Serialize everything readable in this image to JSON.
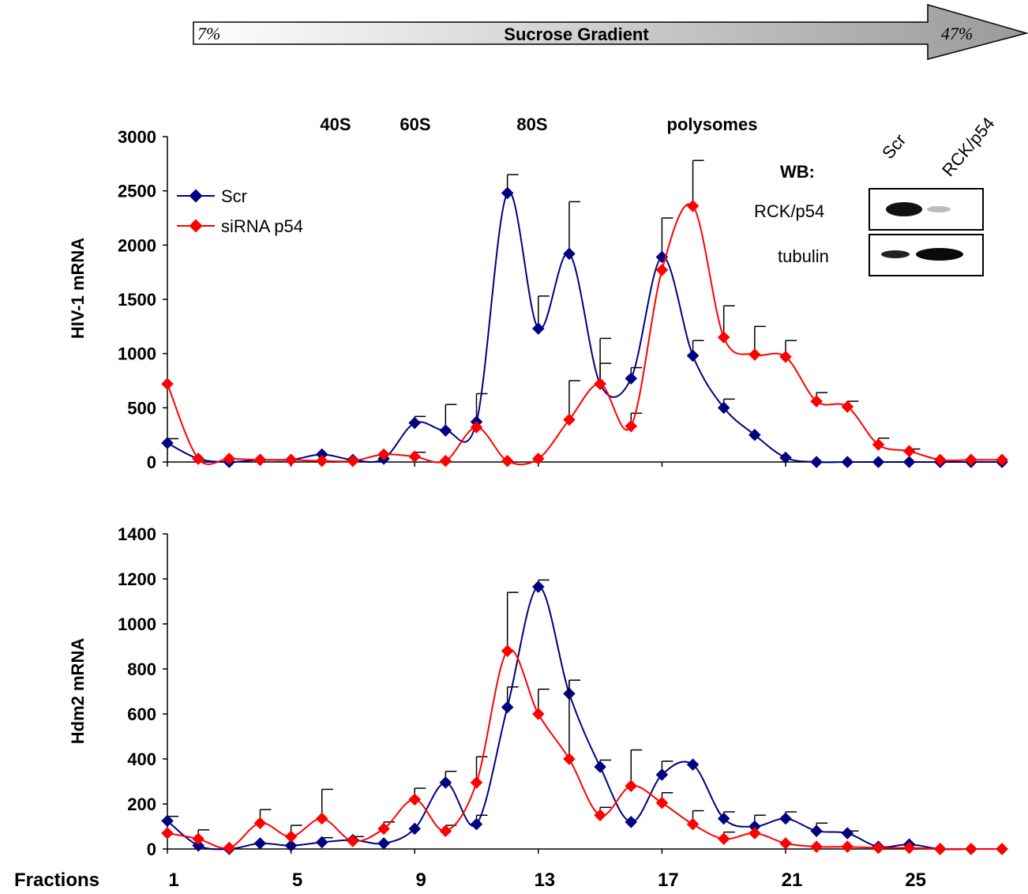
{
  "gradient": {
    "label": "Sucrose Gradient",
    "start": "7%",
    "end": "47%"
  },
  "bottom_label": "Fractions",
  "peaks": [
    "40S",
    "60S",
    "80S",
    "polysomes"
  ],
  "western_blot": {
    "title": "WB:",
    "lanes": [
      "Scr",
      "RCK/p54"
    ],
    "rows": [
      {
        "label": "RCK/p54",
        "intensity": [
          1.0,
          0.2
        ]
      },
      {
        "label": "tubulin",
        "intensity": [
          0.6,
          1.0
        ]
      }
    ]
  },
  "colors": {
    "scr": "#000080",
    "sirna": "#ff0000"
  },
  "chart_data": [
    {
      "type": "line",
      "ylabel": "HIV-1 mRNA",
      "xlabel": "",
      "ylim": [
        0,
        3000
      ],
      "yticks": [
        0,
        500,
        1000,
        1500,
        2000,
        2500,
        3000
      ],
      "xlim": [
        0,
        28
      ],
      "xticks": [
        1,
        5,
        9,
        13,
        17,
        21,
        25
      ],
      "legend": "top-left",
      "x": [
        1,
        2,
        3,
        4,
        5,
        6,
        7,
        8,
        9,
        10,
        11,
        12,
        13,
        14,
        15,
        16,
        17,
        18,
        19,
        20,
        21,
        22,
        23,
        24,
        25,
        26,
        27,
        28
      ],
      "series": [
        {
          "name": "Scr",
          "values": [
            175,
            30,
            0,
            20,
            20,
            70,
            20,
            30,
            360,
            290,
            370,
            2480,
            1230,
            1920,
            720,
            770,
            1890,
            980,
            500,
            250,
            40,
            0,
            0,
            0,
            0,
            0,
            0,
            0
          ],
          "errors": [
            40,
            0,
            0,
            0,
            0,
            0,
            0,
            0,
            60,
            240,
            260,
            170,
            300,
            480,
            190,
            100,
            360,
            140,
            80,
            0,
            0,
            0,
            0,
            0,
            0,
            0,
            0,
            0
          ]
        },
        {
          "name": "siRNA p54",
          "values": [
            720,
            30,
            30,
            20,
            20,
            10,
            10,
            70,
            50,
            10,
            320,
            10,
            30,
            390,
            720,
            330,
            1770,
            2360,
            1150,
            990,
            970,
            560,
            510,
            160,
            100,
            20,
            20,
            20
          ],
          "errors": [
            0,
            0,
            0,
            0,
            0,
            0,
            0,
            0,
            40,
            0,
            0,
            0,
            0,
            360,
            420,
            120,
            0,
            420,
            290,
            260,
            150,
            80,
            50,
            60,
            20,
            0,
            0,
            0
          ]
        }
      ]
    },
    {
      "type": "line",
      "ylabel": "Hdm2 mRNA",
      "xlabel": "",
      "ylim": [
        0,
        1400
      ],
      "yticks": [
        0,
        200,
        400,
        600,
        800,
        1000,
        1200,
        1400
      ],
      "xlim": [
        0,
        28
      ],
      "xticks": [
        1,
        5,
        9,
        13,
        17,
        21,
        25
      ],
      "x": [
        1,
        2,
        3,
        4,
        5,
        6,
        7,
        8,
        9,
        10,
        11,
        12,
        13,
        14,
        15,
        16,
        17,
        18,
        19,
        20,
        21,
        22,
        23,
        24,
        25,
        26,
        27,
        28
      ],
      "series": [
        {
          "name": "Scr",
          "values": [
            125,
            15,
            0,
            25,
            15,
            30,
            40,
            25,
            90,
            295,
            110,
            630,
            1165,
            690,
            365,
            120,
            330,
            375,
            135,
            100,
            135,
            80,
            70,
            10,
            20,
            0,
            0,
            0
          ],
          "errors": [
            20,
            0,
            0,
            0,
            0,
            20,
            0,
            0,
            0,
            50,
            40,
            90,
            30,
            60,
            30,
            0,
            60,
            0,
            30,
            50,
            30,
            35,
            10,
            0,
            0,
            0,
            0,
            0
          ]
        },
        {
          "name": "siRNA p54",
          "values": [
            70,
            45,
            5,
            115,
            55,
            135,
            35,
            90,
            220,
            80,
            295,
            880,
            600,
            400,
            150,
            280,
            205,
            110,
            45,
            70,
            25,
            10,
            10,
            5,
            5,
            0,
            0,
            0
          ],
          "errors": [
            0,
            40,
            0,
            60,
            50,
            130,
            20,
            30,
            50,
            25,
            115,
            260,
            110,
            350,
            35,
            160,
            45,
            60,
            30,
            0,
            0,
            0,
            0,
            0,
            0,
            0,
            0,
            0
          ]
        }
      ]
    }
  ]
}
